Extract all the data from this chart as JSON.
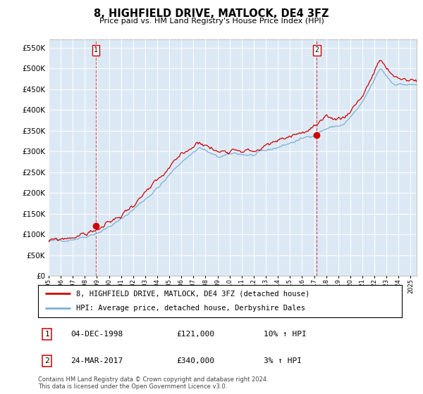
{
  "title": "8, HIGHFIELD DRIVE, MATLOCK, DE4 3FZ",
  "subtitle": "Price paid vs. HM Land Registry's House Price Index (HPI)",
  "legend_line1": "8, HIGHFIELD DRIVE, MATLOCK, DE4 3FZ (detached house)",
  "legend_line2": "HPI: Average price, detached house, Derbyshire Dales",
  "transaction1_date": "04-DEC-1998",
  "transaction1_price": "£121,000",
  "transaction1_hpi": "10% ↑ HPI",
  "transaction2_date": "24-MAR-2017",
  "transaction2_price": "£340,000",
  "transaction2_hpi": "3% ↑ HPI",
  "footer": "Contains HM Land Registry data © Crown copyright and database right 2024.\nThis data is licensed under the Open Government Licence v3.0.",
  "line_color_red": "#CC0000",
  "line_color_blue": "#7BAFD4",
  "chart_bg": "#DCE9F5",
  "background_color": "#FFFFFF",
  "grid_color": "#FFFFFF",
  "ylim": [
    0,
    570000
  ],
  "yticks": [
    0,
    50000,
    100000,
    150000,
    200000,
    250000,
    300000,
    350000,
    400000,
    450000,
    500000,
    550000
  ],
  "marker_color": "#CC0000",
  "transaction1_x": 1998.92,
  "transaction1_y": 121000,
  "transaction2_x": 2017.22,
  "transaction2_y": 340000,
  "xlim_start": 1995.0,
  "xlim_end": 2025.5
}
